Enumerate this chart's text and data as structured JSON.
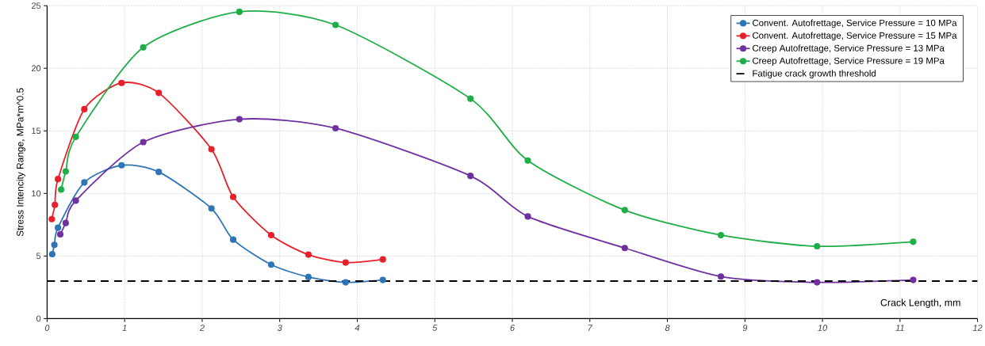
{
  "chart_data": {
    "type": "line",
    "xlabel": "Crack Length, mm",
    "ylabel": "Stress Intencity Range, MPa*m^0.5",
    "xlim": [
      0,
      12
    ],
    "ylim": [
      0,
      25
    ],
    "xticks": [
      0,
      1,
      2,
      3,
      4,
      5,
      6,
      7,
      8,
      9,
      10,
      11,
      12
    ],
    "yticks": [
      0,
      5,
      10,
      15,
      20,
      25
    ],
    "grid": true,
    "legend": "top right",
    "marker": "circle",
    "line_style": "solid",
    "series": [
      {
        "name": "Convent. Autofrettage, Service Pressure = 10 MPa",
        "color": "#2e75b6",
        "x": [
          0.066,
          0.094,
          0.14,
          0.48,
          0.96,
          1.44,
          2.12,
          2.4,
          2.89,
          3.37,
          3.85,
          4.33
        ],
        "values": [
          5.15,
          5.89,
          7.26,
          10.88,
          12.25,
          11.72,
          8.8,
          6.31,
          4.31,
          3.32,
          2.9,
          3.09
        ]
      },
      {
        "name": "Convent. Autofrettage, Service Pressure = 15 MPa",
        "color": "#e8202a",
        "x": [
          0.06,
          0.1,
          0.14,
          0.48,
          0.96,
          1.44,
          2.12,
          2.4,
          2.89,
          3.37,
          3.85,
          4.33
        ],
        "values": [
          7.95,
          9.09,
          11.15,
          16.73,
          18.83,
          18.03,
          13.53,
          9.72,
          6.67,
          5.11,
          4.48,
          4.73
        ]
      },
      {
        "name": "Creep Autofrettage, Service Pressure = 13 MPa",
        "color": "#7030a0",
        "x": [
          0.17,
          0.24,
          0.37,
          1.24,
          2.48,
          3.72,
          5.46,
          6.2,
          7.45,
          8.69,
          9.93,
          11.17
        ],
        "values": [
          6.73,
          7.64,
          9.43,
          14.1,
          15.93,
          15.21,
          11.4,
          8.16,
          5.64,
          3.36,
          2.9,
          3.09
        ]
      },
      {
        "name": "Creep Autofrettage, Service Pressure = 19 MPa",
        "color": "#1fae47",
        "x": [
          0.18,
          0.24,
          0.37,
          1.24,
          2.48,
          3.72,
          5.46,
          6.2,
          7.45,
          8.69,
          9.93,
          11.17
        ],
        "values": [
          10.31,
          11.76,
          14.52,
          21.67,
          24.51,
          23.46,
          17.57,
          12.63,
          8.67,
          6.67,
          5.78,
          6.14
        ]
      }
    ],
    "ref_lines": [
      {
        "axis": "y",
        "value": 3,
        "label": "Fatigue crack growth threshold",
        "color": "#000000",
        "line_style": "dashed"
      }
    ]
  }
}
